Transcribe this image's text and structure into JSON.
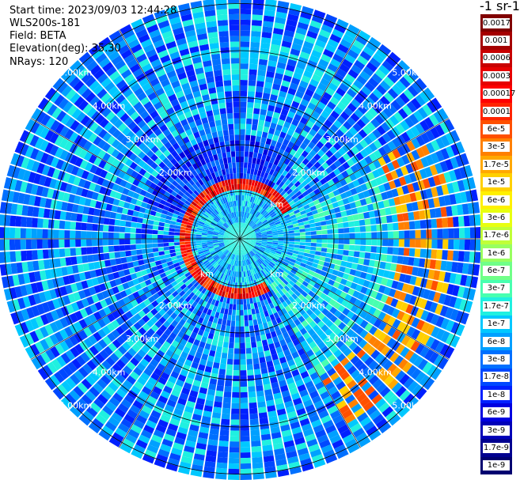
{
  "header": {
    "start_time": "Start time: 2023/09/03 12:44:28",
    "instrument": "WLS200s-181",
    "field": "Field: BETA",
    "elevation": "Elevation(deg): 35.30",
    "nrays": "NRays: 120"
  },
  "colorbar": {
    "title": "-1 sr-1",
    "labels": [
      "0.0017",
      "0.001",
      "0.0006",
      "0.0003",
      "0.00017",
      "0.0001",
      "6e-5",
      "3e-5",
      "1.7e-5",
      "1e-5",
      "6e-6",
      "3e-6",
      "1.7e-6",
      "1e-6",
      "6e-7",
      "3e-7",
      "1.7e-7",
      "1e-7",
      "6e-8",
      "3e-8",
      "1.7e-8",
      "1e-8",
      "6e-9",
      "3e-9",
      "1.7e-9",
      "1e-9"
    ],
    "colors": [
      "#800000",
      "#a50000",
      "#c80000",
      "#e60000",
      "#ff0000",
      "#ff2400",
      "#ff5000",
      "#ff8000",
      "#ffa800",
      "#ffd000",
      "#fff000",
      "#e8ff10",
      "#c0ff38",
      "#98ff60",
      "#70ff88",
      "#48ffb0",
      "#20f0e0",
      "#00c8ff",
      "#00a0ff",
      "#0070ff",
      "#0048ff",
      "#0020ff",
      "#0000e0",
      "#0000b8",
      "#000090",
      "#000070"
    ]
  },
  "chart_data": {
    "type": "heatmap",
    "projection": "polar PPI (plan position indicator)",
    "field": "BETA",
    "elevation_deg": 35.3,
    "n_rays": 120,
    "range_ring_labels": [
      "2.00km",
      "3.00km",
      "4.00km",
      "5.00km"
    ],
    "inner_ring_labels": [
      "km",
      "km",
      "km"
    ],
    "range_rings_km": [
      1,
      2,
      3,
      4,
      5
    ],
    "max_range_km": 5.6,
    "colorscale": "log, 1e-9 to 0.0017",
    "features": {
      "aerosol_ring_range_km": 1.2,
      "high_backscatter_sector_east_range_km": [
        3.4,
        4.6
      ]
    }
  }
}
